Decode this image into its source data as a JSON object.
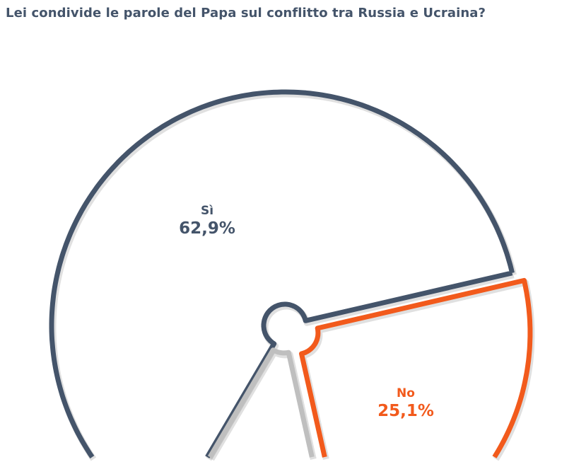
{
  "chart_data": {
    "type": "pie",
    "title": "Lei condivide le parole del Papa sul conflitto tra Russia e Ucraina?",
    "slices": [
      {
        "name": "Sì",
        "value": 62.9,
        "label": "62,9%",
        "color": "#44546a",
        "exploded": false,
        "labeled": true
      },
      {
        "name": "No",
        "value": 25.1,
        "label": "25,1%",
        "color": "#f25a1c",
        "exploded": true,
        "labeled": true
      },
      {
        "name": "",
        "value": 12.0,
        "label": "",
        "color": "#bfbfbf",
        "exploded": true,
        "labeled": false
      }
    ],
    "style": "doughnut-outline",
    "legend": "none"
  }
}
